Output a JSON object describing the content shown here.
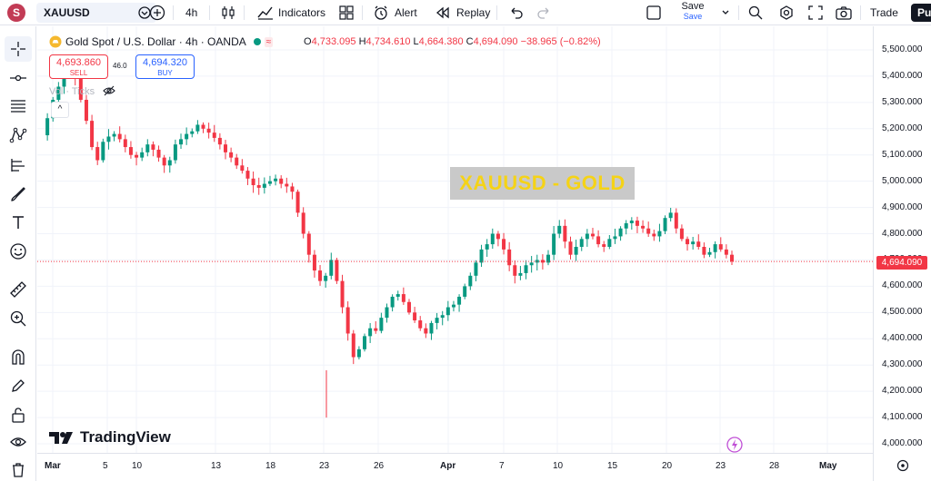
{
  "toolbar": {
    "avatar_letter": "S",
    "symbol": "XAUUSD",
    "interval": "4h",
    "indicators_label": "Indicators",
    "alert_label": "Alert",
    "replay_label": "Replay",
    "save_label": "Save",
    "save_sub": "Save",
    "trade_label": "Trade",
    "publish_label": "Pu"
  },
  "legend": {
    "title": "Gold Spot / U.S. Dollar · 4h · OANDA",
    "open_label": "O",
    "open": "4,733.095",
    "high_label": "H",
    "high": "4,734.610",
    "low_label": "L",
    "low": "4,664.380",
    "close_label": "C",
    "close": "4,694.090",
    "change": "−38.965 (−0.82%)"
  },
  "order": {
    "sell_price": "4,693.860",
    "sell_label": "SELL",
    "spread": "46.0",
    "buy_price": "4,694.320",
    "buy_label": "BUY"
  },
  "vol_ticks_label": "Vol · Ticks",
  "watermark_text": "XAUUSD - GOLD",
  "brand": "TradingView",
  "current_price_label": "4,694.090",
  "colors": {
    "up": "#089981",
    "down": "#f23645",
    "accent": "#2962ff",
    "watermark_bg": "#c9c9c9",
    "watermark_text": "#f5d316"
  },
  "chart_data": {
    "type": "candlestick",
    "title": "Gold Spot / U.S. Dollar · 4h · OANDA",
    "y_ticks": [
      "5,500.000",
      "5,400.000",
      "5,300.000",
      "5,200.000",
      "5,100.000",
      "5,000.000",
      "4,900.000",
      "4,800.000",
      "4,700.000",
      "4,600.000",
      "4,500.000",
      "4,400.000",
      "4,300.000",
      "4,200.000",
      "4,100.000",
      "4,000.000"
    ],
    "y_tick_values": [
      5500,
      5400,
      5300,
      5200,
      5100,
      5000,
      4900,
      4800,
      4700,
      4600,
      4500,
      4400,
      4300,
      4200,
      4100,
      4000
    ],
    "ylim": [
      3985,
      5530
    ],
    "x_ticks": [
      "Mar",
      "5",
      "10",
      "13",
      "18",
      "23",
      "26",
      "Apr",
      "7",
      "10",
      "15",
      "20",
      "23",
      "28",
      "May"
    ],
    "current_price": 4694.09,
    "current_price_line": "dashed",
    "grid": true,
    "close_path": [
      5175,
      5240,
      5310,
      5360,
      5410,
      5440,
      5390,
      5310,
      5230,
      5130,
      5080,
      5150,
      5170,
      5180,
      5160,
      5130,
      5100,
      5090,
      5110,
      5140,
      5120,
      5090,
      5060,
      5080,
      5140,
      5160,
      5180,
      5190,
      5215,
      5200,
      5185,
      5165,
      5140,
      5110,
      5090,
      5060,
      5040,
      5010,
      4985,
      4975,
      4990,
      5000,
      5010,
      4990,
      4980,
      4960,
      4880,
      4800,
      4720,
      4660,
      4620,
      4640,
      4700,
      4620,
      4520,
      4420,
      4330,
      4360,
      4410,
      4440,
      4430,
      4480,
      4520,
      4560,
      4570,
      4540,
      4500,
      4470,
      4440,
      4420,
      4460,
      4480,
      4490,
      4520,
      4530,
      4560,
      4600,
      4640,
      4690,
      4740,
      4760,
      4800,
      4780,
      4740,
      4680,
      4640,
      4650,
      4680,
      4690,
      4700,
      4690,
      4720,
      4800,
      4830,
      4770,
      4720,
      4750,
      4780,
      4800,
      4790,
      4760,
      4750,
      4780,
      4790,
      4820,
      4840,
      4850,
      4830,
      4820,
      4800,
      4790,
      4810,
      4860,
      4880,
      4820,
      4780,
      4760,
      4770,
      4750,
      4720,
      4730,
      4760,
      4740,
      4720,
      4694
    ]
  }
}
